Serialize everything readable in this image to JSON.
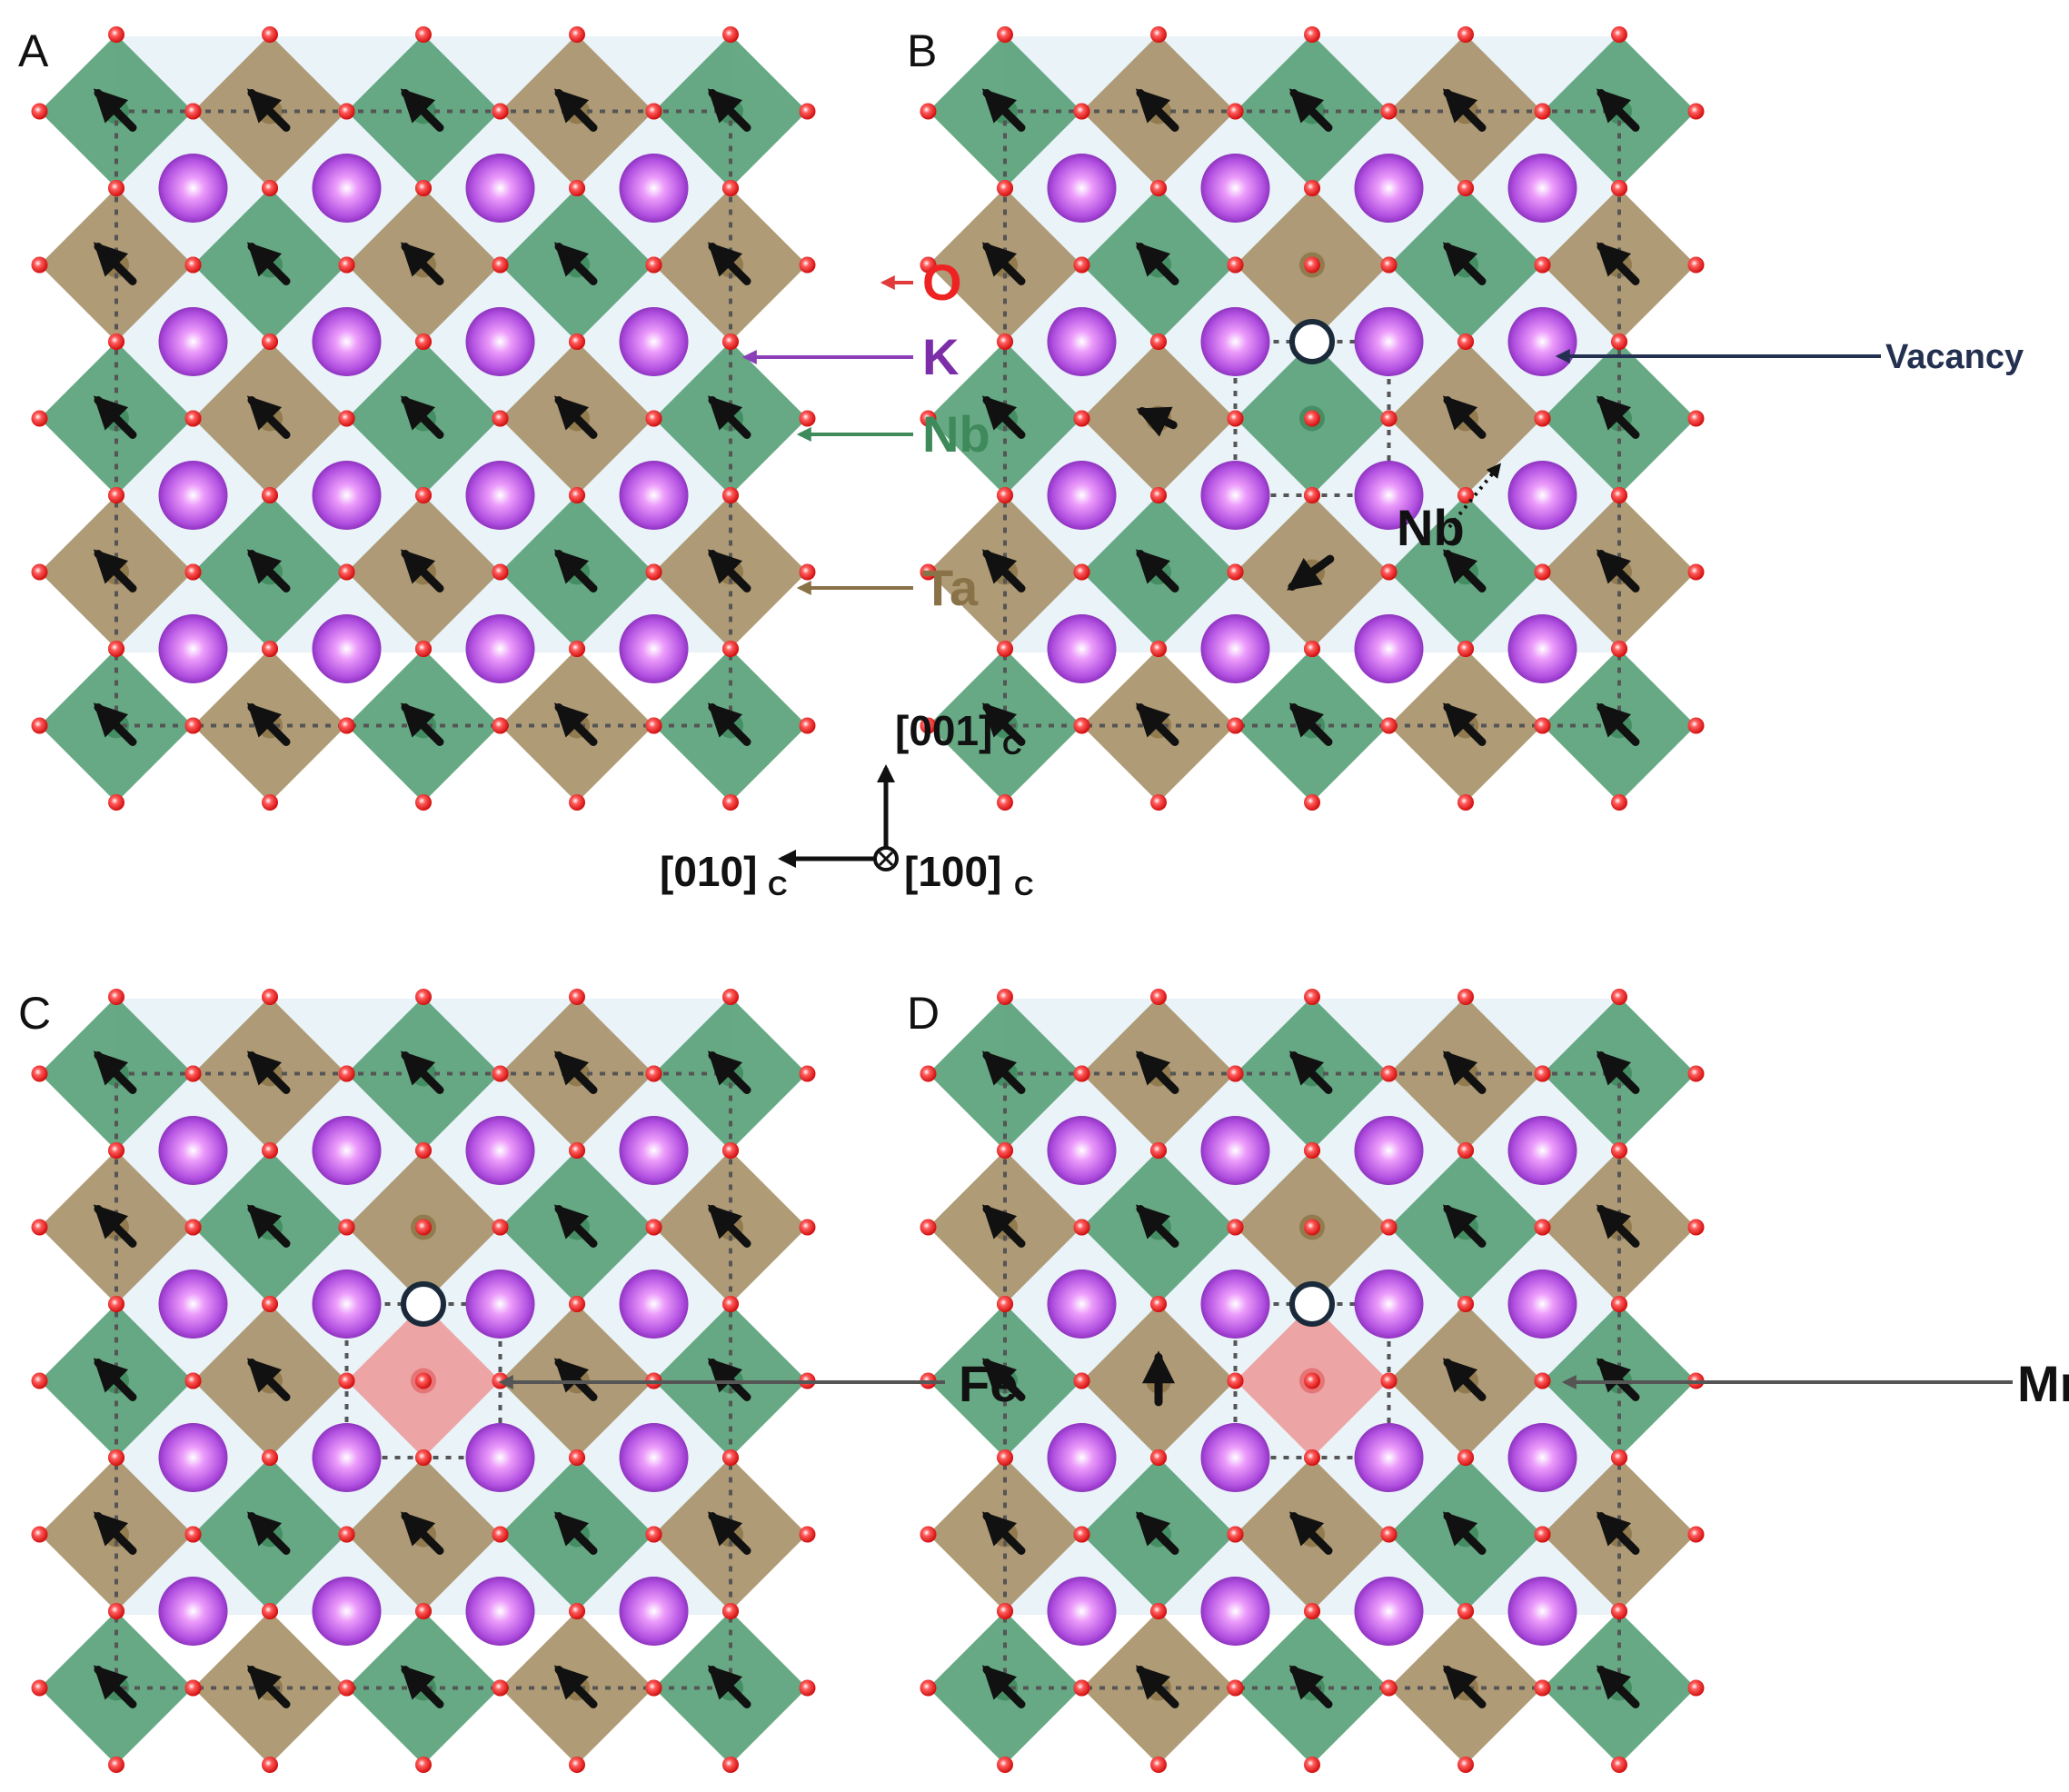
{
  "panels": [
    {
      "label": "A",
      "defect": null
    },
    {
      "label": "B",
      "defect": "vacancy-nb"
    },
    {
      "label": "C",
      "defect": "vacancy-fe"
    },
    {
      "label": "D",
      "defect": "vacancy-mn"
    }
  ],
  "legend": {
    "o": "O",
    "k": "K",
    "nb": "Nb",
    "ta": "Ta"
  },
  "annotations": {
    "vacancy": "Vacancy",
    "nb_hop": "Nb",
    "fe": "Fe",
    "mn": "Mn"
  },
  "axes": {
    "up": "[001]",
    "up_sub": "C",
    "left": "[010]",
    "left_sub": "C",
    "into": "[100]",
    "into_sub": "C"
  },
  "colors": {
    "nb_octahedron": "#5aa27a",
    "ta_octahedron": "#a8936a",
    "k_atom": "#b14fe0",
    "o_atom": "#ee1c1c",
    "dopant_octahedron": "#ee8a8a",
    "background_cell": "#e9f3f8",
    "polarization_arrow": "#111111"
  }
}
